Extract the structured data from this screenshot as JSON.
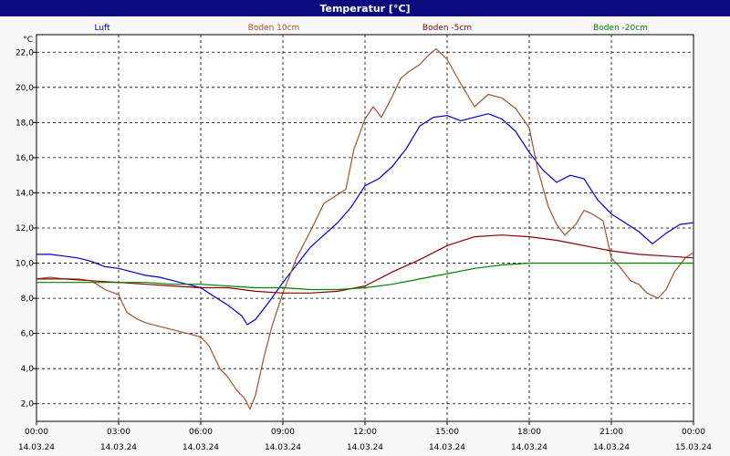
{
  "window": {
    "title": "Temperatur [°C]"
  },
  "chart_data": {
    "type": "line",
    "title": "Temperatur [°C]",
    "ylabel": "°C",
    "ylim": [
      1.0,
      23.0
    ],
    "yticks": [
      "2,0",
      "4,0",
      "6,0",
      "8,0",
      "10,0",
      "12,0",
      "14,0",
      "16,0",
      "18,0",
      "20,0",
      "22,0"
    ],
    "ytick_values": [
      2,
      4,
      6,
      8,
      10,
      12,
      14,
      16,
      18,
      20,
      22
    ],
    "xlim": [
      0,
      24
    ],
    "xticks": [
      {
        "time": "00:00",
        "date": "14.03.24"
      },
      {
        "time": "03:00",
        "date": "14.03.24"
      },
      {
        "time": "06:00",
        "date": "14.03.24"
      },
      {
        "time": "09:00",
        "date": "14.03.24"
      },
      {
        "time": "12:00",
        "date": "14.03.24"
      },
      {
        "time": "15:00",
        "date": "14.03.24"
      },
      {
        "time": "18:00",
        "date": "14.03.24"
      },
      {
        "time": "21:00",
        "date": "14.03.24"
      },
      {
        "time": "00:00",
        "date": "15.03.24"
      }
    ],
    "xtick_values": [
      0,
      3,
      6,
      9,
      12,
      15,
      18,
      21,
      24
    ],
    "grid": true,
    "legend_position": "top",
    "series": [
      {
        "name": "Luft",
        "color": "#0000c8",
        "x": [
          0,
          0.5,
          1,
          1.5,
          2,
          2.5,
          3,
          3.5,
          4,
          4.5,
          5,
          5.5,
          6,
          6.5,
          7,
          7.5,
          7.7,
          8,
          8.5,
          9,
          9.5,
          10,
          10.5,
          11,
          11.5,
          12,
          12.5,
          13,
          13.5,
          14,
          14.5,
          15,
          15.5,
          16,
          16.5,
          17,
          17.5,
          18,
          18.5,
          19,
          19.5,
          20,
          20.5,
          21,
          21.5,
          22,
          22.5,
          23,
          23.5,
          24
        ],
        "values": [
          10.5,
          10.5,
          10.4,
          10.3,
          10.1,
          9.8,
          9.7,
          9.5,
          9.3,
          9.2,
          9.0,
          8.8,
          8.6,
          8.1,
          7.6,
          7.0,
          6.5,
          6.8,
          7.8,
          8.9,
          9.9,
          10.9,
          11.6,
          12.3,
          13.2,
          14.4,
          14.8,
          15.5,
          16.5,
          17.8,
          18.3,
          18.4,
          18.1,
          18.3,
          18.5,
          18.2,
          17.5,
          16.3,
          15.3,
          14.6,
          15.0,
          14.8,
          13.6,
          12.8,
          12.3,
          11.8,
          11.1,
          11.7,
          12.2,
          12.3
        ]
      },
      {
        "name": "Boden 10cm",
        "color": "#a0522d",
        "x": [
          0,
          0.5,
          1,
          1.5,
          2,
          2.5,
          3,
          3.3,
          3.7,
          4,
          4.5,
          5,
          5.5,
          6,
          6.3,
          6.7,
          7,
          7.3,
          7.6,
          7.8,
          8,
          8.3,
          8.6,
          9,
          9.5,
          10,
          10.5,
          11,
          11.3,
          11.6,
          12,
          12.3,
          12.6,
          13,
          13.3,
          13.6,
          14,
          14.3,
          14.6,
          15,
          15.5,
          16,
          16.5,
          17,
          17.5,
          18,
          18.3,
          18.7,
          19,
          19.3,
          19.7,
          20,
          20.3,
          20.7,
          21,
          21.3,
          21.7,
          22,
          22.3,
          22.7,
          23,
          23.3,
          23.7,
          24
        ],
        "values": [
          9.1,
          9.2,
          9.1,
          9.1,
          9.0,
          8.5,
          8.2,
          7.2,
          6.8,
          6.6,
          6.4,
          6.2,
          6.0,
          5.8,
          5.3,
          4.0,
          3.5,
          2.8,
          2.3,
          1.7,
          2.5,
          4.6,
          6.4,
          8.3,
          10.3,
          11.8,
          13.4,
          13.9,
          14.2,
          16.5,
          18.2,
          18.9,
          18.3,
          19.5,
          20.5,
          20.9,
          21.3,
          21.8,
          22.2,
          21.6,
          20.2,
          18.9,
          19.6,
          19.4,
          18.8,
          17.7,
          15.4,
          13.2,
          12.2,
          11.6,
          12.2,
          13.0,
          12.8,
          12.4,
          10.3,
          9.8,
          9.0,
          8.8,
          8.3,
          8.0,
          8.5,
          9.5,
          10.3,
          10.6
        ]
      },
      {
        "name": "Boden -5cm",
        "color": "#8b0000",
        "x": [
          0,
          1,
          2,
          3,
          4,
          5,
          6,
          7,
          8,
          9,
          10,
          11,
          12,
          13,
          14,
          15,
          16,
          17,
          18,
          19,
          20,
          21,
          22,
          23,
          24
        ],
        "values": [
          9.1,
          9.1,
          9.0,
          8.9,
          8.8,
          8.7,
          8.6,
          8.6,
          8.4,
          8.3,
          8.3,
          8.4,
          8.7,
          9.5,
          10.2,
          11.0,
          11.5,
          11.6,
          11.5,
          11.3,
          11.0,
          10.7,
          10.5,
          10.4,
          10.3
        ]
      },
      {
        "name": "Boden -20cm",
        "color": "#008000",
        "x": [
          0,
          1,
          2,
          3,
          4,
          5,
          6,
          7,
          8,
          9,
          10,
          11,
          12,
          13,
          14,
          15,
          16,
          17,
          18,
          19,
          20,
          21,
          22,
          23,
          24
        ],
        "values": [
          8.9,
          8.9,
          8.9,
          8.9,
          8.9,
          8.8,
          8.8,
          8.7,
          8.6,
          8.6,
          8.5,
          8.5,
          8.6,
          8.8,
          9.1,
          9.4,
          9.7,
          9.9,
          10.0,
          10.0,
          10.0,
          10.0,
          10.0,
          10.0,
          10.0
        ]
      }
    ]
  }
}
